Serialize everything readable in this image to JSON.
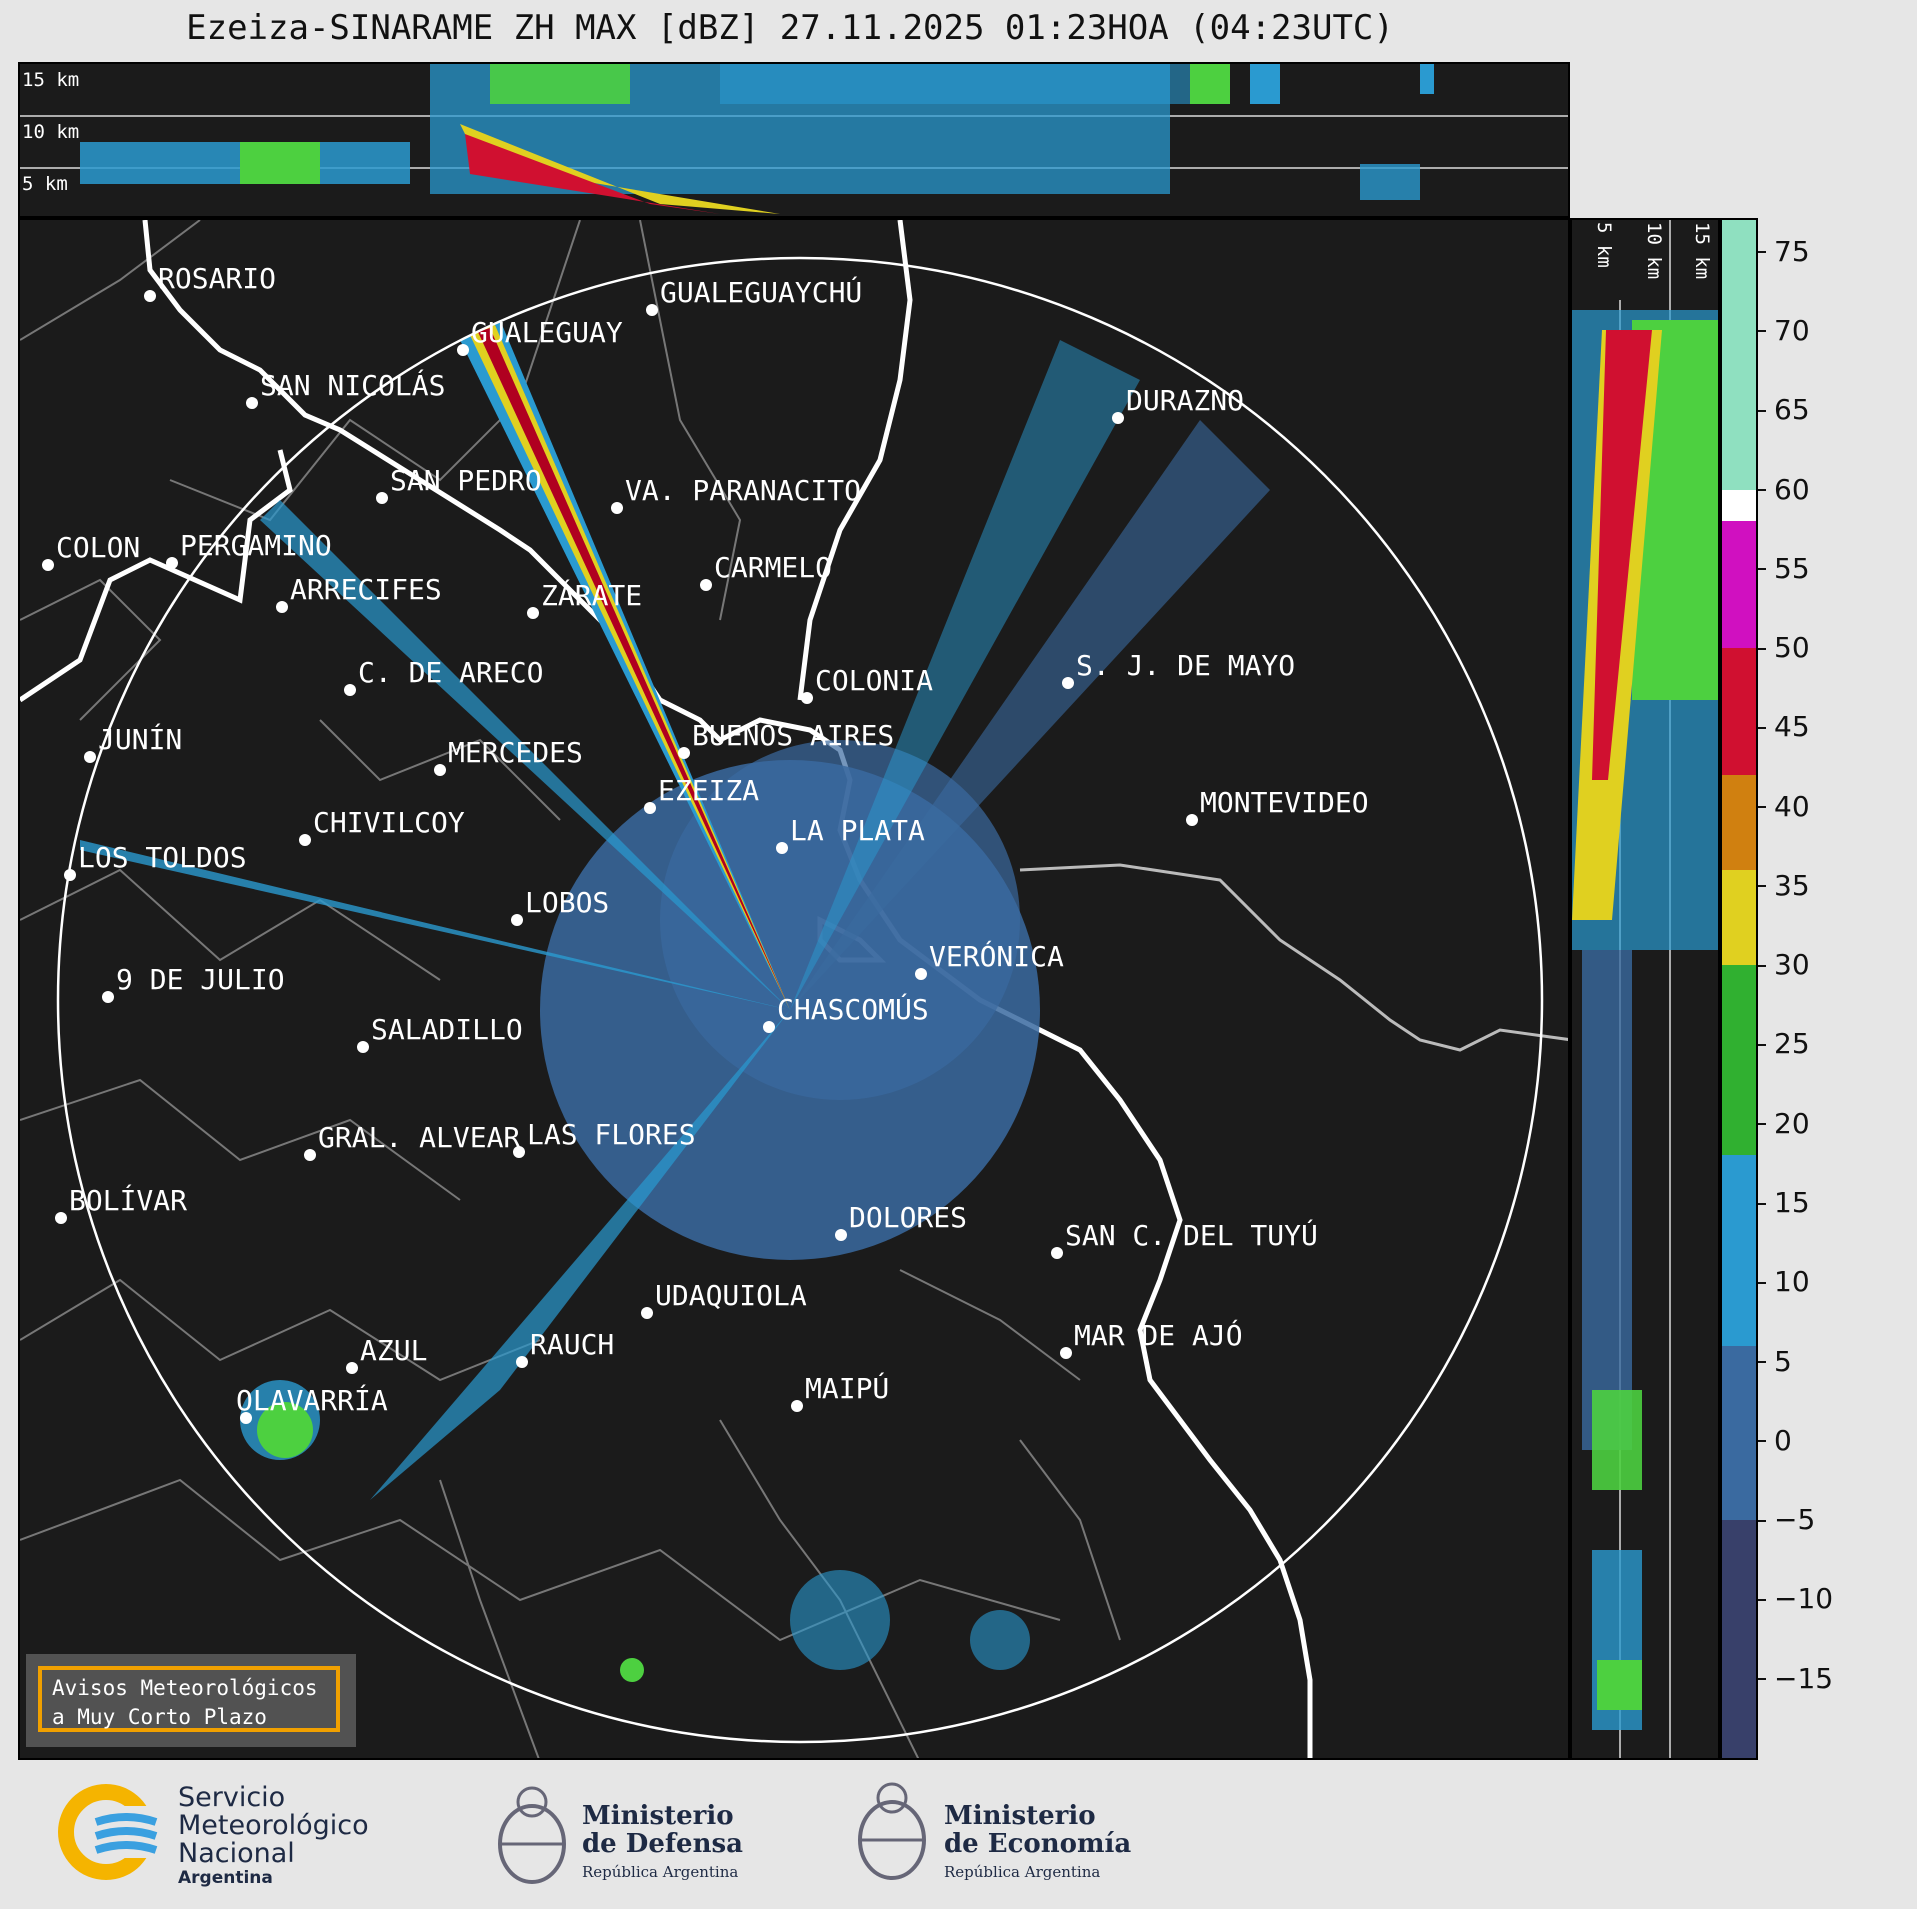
{
  "title": "Ezeiza-SINARAME ZH MAX [dBZ] 27.11.2025 01:23HOA (04:23UTC)",
  "top_panel": {
    "alt_labels": [
      "15 km",
      "10 km",
      "5 km"
    ]
  },
  "side_panel": {
    "alt_labels": [
      "5 km",
      "10 km",
      "15 km"
    ]
  },
  "colorbar": {
    "ticks": [
      "75",
      "70",
      "65",
      "60",
      "55",
      "50",
      "45",
      "40",
      "35",
      "30",
      "25",
      "20",
      "15",
      "10",
      "5",
      "0",
      "−5",
      "−10",
      "−15"
    ],
    "range_dbz": [
      -20,
      77
    ],
    "bands": [
      {
        "from": 60,
        "to": 77,
        "color": "#8fe0c0"
      },
      {
        "from": 58,
        "to": 60,
        "color": "#ffffff"
      },
      {
        "from": 50,
        "to": 58,
        "color": "#d010c0"
      },
      {
        "from": 42,
        "to": 50,
        "color": "#d01030"
      },
      {
        "from": 36,
        "to": 42,
        "color": "#d08010"
      },
      {
        "from": 30,
        "to": 36,
        "color": "#e0d020"
      },
      {
        "from": 18,
        "to": 30,
        "color": "#30b030"
      },
      {
        "from": 6,
        "to": 18,
        "color": "#2a9ad0"
      },
      {
        "from": -5,
        "to": 6,
        "color": "#3a6aa0"
      },
      {
        "from": -20,
        "to": -5,
        "color": "#38406a"
      }
    ]
  },
  "cities": [
    {
      "name": "ROSARIO"
    },
    {
      "name": "GUALEGUAYCHÚ"
    },
    {
      "name": "GUALEGUAY"
    },
    {
      "name": "SAN NICOLÁS"
    },
    {
      "name": "DURAZNO"
    },
    {
      "name": "SAN PEDRO"
    },
    {
      "name": "VA. PARANACITO"
    },
    {
      "name": "COLON"
    },
    {
      "name": "PERGAMINO"
    },
    {
      "name": "CARMELO"
    },
    {
      "name": "ARRECIFES"
    },
    {
      "name": "ZÁRATE"
    },
    {
      "name": "S. J. DE MAYO"
    },
    {
      "name": "C. DE ARECO"
    },
    {
      "name": "COLONIA"
    },
    {
      "name": "JUNÍN"
    },
    {
      "name": "BUENOS AIRES"
    },
    {
      "name": "MERCEDES"
    },
    {
      "name": "MONTEVIDEO"
    },
    {
      "name": "EZEIZA"
    },
    {
      "name": "CHIVILCOY"
    },
    {
      "name": "LA PLATA"
    },
    {
      "name": "LOS TOLDOS"
    },
    {
      "name": "LOBOS"
    },
    {
      "name": "VERÓNICA"
    },
    {
      "name": "9 DE JULIO"
    },
    {
      "name": "CHASCOMÚS"
    },
    {
      "name": "SALADILLO"
    },
    {
      "name": "GRAL. ALVEAR"
    },
    {
      "name": "LAS FLORES"
    },
    {
      "name": "BOLÍVAR"
    },
    {
      "name": "DOLORES"
    },
    {
      "name": "SAN C. DEL TUYÚ"
    },
    {
      "name": "UDAQUIOLA"
    },
    {
      "name": "MAR DE AJÓ"
    },
    {
      "name": "AZUL"
    },
    {
      "name": "RAUCH"
    },
    {
      "name": "OLAVARRÍA"
    },
    {
      "name": "MAIPÚ"
    }
  ],
  "warning_box": {
    "line1": "Avisos Meteorológicos",
    "line2": "a Muy Corto Plazo"
  },
  "footer": {
    "smn": {
      "line1": "Servicio",
      "line2": "Meteorológico",
      "line3": "Nacional",
      "line4": "Argentina"
    },
    "defensa": {
      "line1": "Ministerio",
      "line2": "de Defensa",
      "line3": "República Argentina"
    },
    "economia": {
      "line1": "Ministerio",
      "line2": "de Economía",
      "line3": "República Argentina"
    }
  },
  "colors": {
    "background": "#1b1b1b",
    "page": "#e6e6e6",
    "warning_border": "#f0a000"
  }
}
